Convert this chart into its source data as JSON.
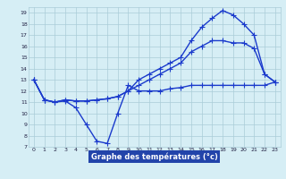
{
  "title": "Graphe des températures (°c)",
  "bg_color": "#d6eef5",
  "plot_bg_color": "#d6eef5",
  "line_color": "#1a3acc",
  "grid_color": "#aaccd8",
  "label_bg": "#2244aa",
  "label_fg": "#ffffff",
  "xlim": [
    -0.5,
    23.5
  ],
  "ylim": [
    7,
    19.5
  ],
  "xticks": [
    0,
    1,
    2,
    3,
    4,
    5,
    6,
    7,
    8,
    9,
    10,
    11,
    12,
    13,
    14,
    15,
    16,
    17,
    18,
    19,
    20,
    21,
    22,
    23
  ],
  "yticks": [
    7,
    8,
    9,
    10,
    11,
    12,
    13,
    14,
    15,
    16,
    17,
    18,
    19
  ],
  "series": [
    {
      "x": [
        0,
        1,
        2,
        3,
        4,
        5,
        6,
        7,
        8,
        9,
        10,
        11,
        12,
        13,
        14,
        15,
        16,
        17,
        18,
        19,
        20,
        21,
        22,
        23
      ],
      "y": [
        13,
        11.2,
        11.0,
        11.1,
        10.5,
        9.0,
        7.5,
        7.3,
        10.0,
        12.5,
        12.0,
        12.0,
        12.0,
        12.2,
        12.3,
        12.5,
        12.5,
        12.5,
        12.5,
        12.5,
        12.5,
        12.5,
        12.5,
        12.8
      ]
    },
    {
      "x": [
        0,
        1,
        2,
        3,
        4,
        5,
        6,
        7,
        8,
        9,
        10,
        11,
        12,
        13,
        14,
        15,
        16,
        17,
        18,
        19,
        20,
        21,
        22,
        23
      ],
      "y": [
        13,
        11.2,
        11.0,
        11.2,
        11.1,
        11.1,
        11.2,
        11.3,
        11.5,
        12.0,
        13.0,
        13.5,
        14.0,
        14.5,
        15.0,
        16.5,
        17.7,
        18.5,
        19.2,
        18.8,
        18.0,
        17.0,
        13.5,
        12.8
      ]
    },
    {
      "x": [
        0,
        1,
        2,
        3,
        4,
        5,
        6,
        7,
        8,
        9,
        10,
        11,
        12,
        13,
        14,
        15,
        16,
        17,
        18,
        19,
        20,
        21,
        22,
        23
      ],
      "y": [
        13,
        11.2,
        11.0,
        11.2,
        11.1,
        11.1,
        11.2,
        11.3,
        11.5,
        12.0,
        12.5,
        13.0,
        13.5,
        14.0,
        14.5,
        15.5,
        16.0,
        16.5,
        16.5,
        16.3,
        16.3,
        15.8,
        13.5,
        12.8
      ]
    }
  ],
  "marker": "+",
  "markersize": 4,
  "linewidth": 1.0
}
